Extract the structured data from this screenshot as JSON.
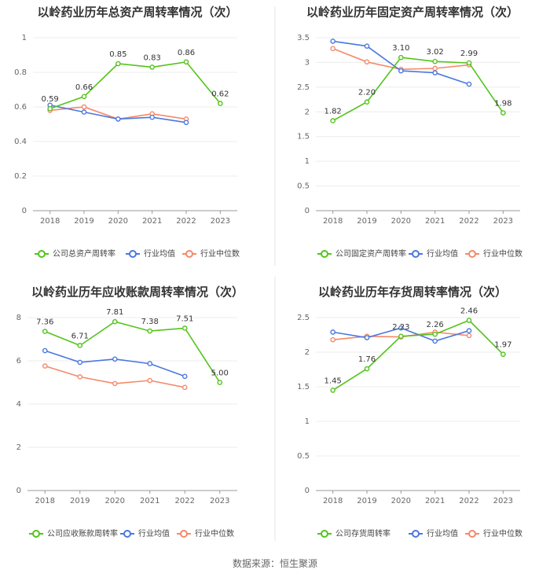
{
  "source": "数据来源：恒生聚源",
  "colors": {
    "company": "#52c41a",
    "avg": "#4a78e0",
    "median": "#f5896a",
    "grid": "#ececec",
    "divider": "#e5e5e5"
  },
  "chart_data": [
    {
      "type": "line",
      "title": "以岭药业历年总资产周转率情况（次）",
      "categories": [
        "2018",
        "2019",
        "2020",
        "2021",
        "2022",
        "2023"
      ],
      "ylim": [
        0,
        1
      ],
      "yticks": [
        "0",
        "0.2",
        "0.4",
        "0.6",
        "0.8",
        "1"
      ],
      "ytick_values": [
        0,
        0.2,
        0.4,
        0.6,
        0.8,
        1
      ],
      "series": [
        {
          "name": "公司总资产周转率",
          "key": "company",
          "values": [
            0.59,
            0.66,
            0.85,
            0.83,
            0.86,
            0.62
          ],
          "labels": [
            "0.59",
            "0.66",
            "0.85",
            "0.83",
            "0.86",
            "0.62"
          ]
        },
        {
          "name": "行业均值",
          "key": "avg",
          "values": [
            0.61,
            0.57,
            0.53,
            0.54,
            0.51,
            null
          ]
        },
        {
          "name": "行业中位数",
          "key": "median",
          "values": [
            0.58,
            0.6,
            0.53,
            0.56,
            0.53,
            null
          ]
        }
      ]
    },
    {
      "type": "line",
      "title": "以岭药业历年固定资产周转率情况（次）",
      "categories": [
        "2018",
        "2019",
        "2020",
        "2021",
        "2022",
        "2023"
      ],
      "ylim": [
        0,
        3.5
      ],
      "yticks": [
        "0",
        "0.5",
        "1",
        "1.5",
        "2",
        "2.5",
        "3",
        "3.5"
      ],
      "ytick_values": [
        0,
        0.5,
        1,
        1.5,
        2,
        2.5,
        3,
        3.5
      ],
      "series": [
        {
          "name": "公司固定资产周转率",
          "key": "company",
          "values": [
            1.82,
            2.2,
            3.1,
            3.02,
            2.99,
            1.98
          ],
          "labels": [
            "1.82",
            "2.20",
            "3.10",
            "3.02",
            "2.99",
            "1.98"
          ]
        },
        {
          "name": "行业均值",
          "key": "avg",
          "values": [
            3.43,
            3.33,
            2.83,
            2.79,
            2.56,
            null
          ]
        },
        {
          "name": "行业中位数",
          "key": "median",
          "values": [
            3.28,
            3.01,
            2.86,
            2.88,
            2.95,
            null
          ]
        }
      ]
    },
    {
      "type": "line",
      "title": "以岭药业历年应收账款周转率情况（次）",
      "categories": [
        "2018",
        "2019",
        "2020",
        "2021",
        "2022",
        "2023"
      ],
      "ylim": [
        0,
        8
      ],
      "yticks": [
        "0",
        "2",
        "4",
        "6",
        "8"
      ],
      "ytick_values": [
        0,
        2,
        4,
        6,
        8
      ],
      "series": [
        {
          "name": "公司应收账款周转率",
          "key": "company",
          "values": [
            7.36,
            6.71,
            7.81,
            7.38,
            7.51,
            5.0
          ],
          "labels": [
            "7.36",
            "6.71",
            "7.81",
            "7.38",
            "7.51",
            "5.00"
          ]
        },
        {
          "name": "行业均值",
          "key": "avg",
          "values": [
            6.47,
            5.93,
            6.08,
            5.87,
            5.28,
            null
          ]
        },
        {
          "name": "行业中位数",
          "key": "median",
          "values": [
            5.76,
            5.26,
            4.95,
            5.09,
            4.77,
            null
          ]
        }
      ]
    },
    {
      "type": "line",
      "title": "以岭药业历年存货周转率情况（次）",
      "categories": [
        "2018",
        "2019",
        "2020",
        "2021",
        "2022",
        "2023"
      ],
      "ylim": [
        0,
        2.5
      ],
      "yticks": [
        "0",
        "0.5",
        "1",
        "1.5",
        "2",
        "2.5"
      ],
      "ytick_values": [
        0,
        0.5,
        1,
        1.5,
        2,
        2.5
      ],
      "series": [
        {
          "name": "公司存货周转率",
          "key": "company",
          "values": [
            1.45,
            1.76,
            2.23,
            2.26,
            2.46,
            1.97
          ],
          "labels": [
            "1.45",
            "1.76",
            "2.23",
            "2.26",
            "2.46",
            "1.97"
          ]
        },
        {
          "name": "行业均值",
          "key": "avg",
          "values": [
            2.29,
            2.21,
            2.35,
            2.16,
            2.31,
            null
          ]
        },
        {
          "name": "行业中位数",
          "key": "median",
          "values": [
            2.18,
            2.23,
            2.22,
            2.29,
            2.24,
            null
          ]
        }
      ]
    }
  ]
}
